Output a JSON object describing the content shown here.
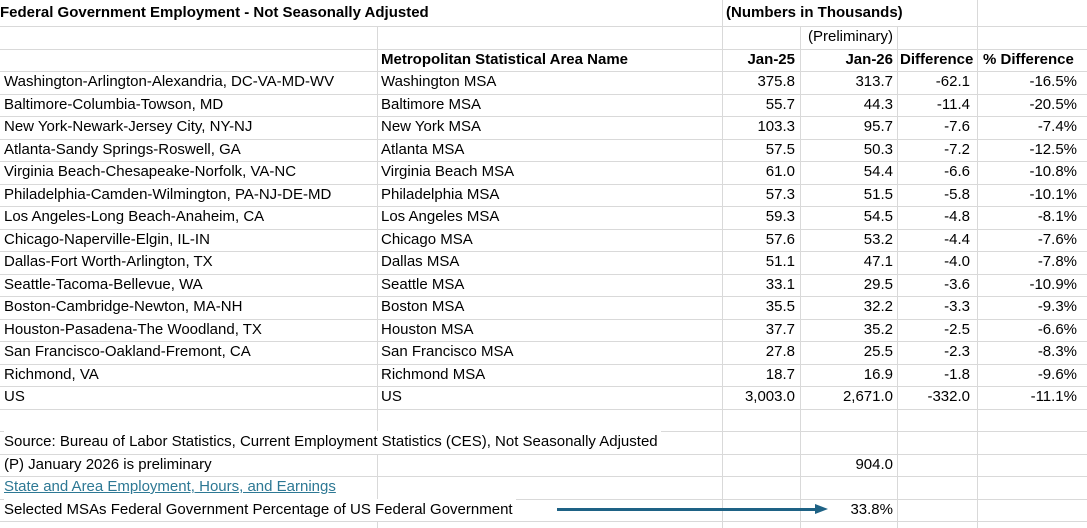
{
  "sheet": {
    "title": "Federal Government Employment - Not Seasonally Adjusted",
    "units_note": "(Numbers in Thousands)",
    "preliminary_note": "(Preliminary)",
    "headers": {
      "msa": "Metropolitan Statistical Area Name",
      "jan25": "Jan-25",
      "jan26": "Jan-26",
      "diff": "Difference",
      "pct": "% Difference"
    },
    "rows": [
      {
        "area": "Washington-Arlington-Alexandria, DC-VA-MD-WV",
        "msa": "Washington MSA",
        "jan25": "375.8",
        "jan26": "313.7",
        "diff": "-62.1",
        "pct": "-16.5%"
      },
      {
        "area": "Baltimore-Columbia-Towson, MD",
        "msa": "Baltimore MSA",
        "jan25": "55.7",
        "jan26": "44.3",
        "diff": "-11.4",
        "pct": "-20.5%"
      },
      {
        "area": "New York-Newark-Jersey City, NY-NJ",
        "msa": "New York MSA",
        "jan25": "103.3",
        "jan26": "95.7",
        "diff": "-7.6",
        "pct": "-7.4%"
      },
      {
        "area": "Atlanta-Sandy Springs-Roswell, GA",
        "msa": "Atlanta MSA",
        "jan25": "57.5",
        "jan26": "50.3",
        "diff": "-7.2",
        "pct": "-12.5%"
      },
      {
        "area": "Virginia Beach-Chesapeake-Norfolk, VA-NC",
        "msa": "Virginia Beach MSA",
        "jan25": "61.0",
        "jan26": "54.4",
        "diff": "-6.6",
        "pct": "-10.8%"
      },
      {
        "area": "Philadelphia-Camden-Wilmington, PA-NJ-DE-MD",
        "msa": "Philadelphia MSA",
        "jan25": "57.3",
        "jan26": "51.5",
        "diff": "-5.8",
        "pct": "-10.1%"
      },
      {
        "area": "Los Angeles-Long Beach-Anaheim, CA",
        "msa": "Los Angeles MSA",
        "jan25": "59.3",
        "jan26": "54.5",
        "diff": "-4.8",
        "pct": "-8.1%"
      },
      {
        "area": "Chicago-Naperville-Elgin, IL-IN",
        "msa": "Chicago MSA",
        "jan25": "57.6",
        "jan26": "53.2",
        "diff": "-4.4",
        "pct": "-7.6%"
      },
      {
        "area": "Dallas-Fort Worth-Arlington, TX",
        "msa": "Dallas MSA",
        "jan25": "51.1",
        "jan26": "47.1",
        "diff": "-4.0",
        "pct": "-7.8%"
      },
      {
        "area": "Seattle-Tacoma-Bellevue, WA",
        "msa": "Seattle MSA",
        "jan25": "33.1",
        "jan26": "29.5",
        "diff": "-3.6",
        "pct": "-10.9%"
      },
      {
        "area": "Boston-Cambridge-Newton, MA-NH",
        "msa": "Boston MSA",
        "jan25": "35.5",
        "jan26": "32.2",
        "diff": "-3.3",
        "pct": "-9.3%"
      },
      {
        "area": "Houston-Pasadena-The Woodland, TX",
        "msa": "Houston MSA",
        "jan25": "37.7",
        "jan26": "35.2",
        "diff": "-2.5",
        "pct": "-6.6%"
      },
      {
        "area": "San Francisco-Oakland-Fremont, CA",
        "msa": "San Francisco MSA",
        "jan25": "27.8",
        "jan26": "25.5",
        "diff": "-2.3",
        "pct": "-8.3%"
      },
      {
        "area": "Richmond, VA",
        "msa": "Richmond MSA",
        "jan25": "18.7",
        "jan26": "16.9",
        "diff": "-1.8",
        "pct": "-9.6%"
      },
      {
        "area": "US",
        "msa": "US",
        "jan25": "3,003.0",
        "jan26": "2,671.0",
        "diff": "-332.0",
        "pct": "-11.1%"
      }
    ],
    "footer": {
      "source": "Source: Bureau of Labor Statistics, Current Employment Statistics (CES), Not Seasonally Adjusted",
      "preliminary": "(P) January 2026 is preliminary",
      "preliminary_value": "904.0",
      "link": "State and Area Employment, Hours, and Earnings",
      "selected_label": "Selected MSAs Federal Government Percentage of US Federal Government",
      "selected_value": "33.8%"
    },
    "colors": {
      "link": "#2d7894",
      "arrow": "#1e6285",
      "gridline": "#d9d9d9"
    }
  }
}
